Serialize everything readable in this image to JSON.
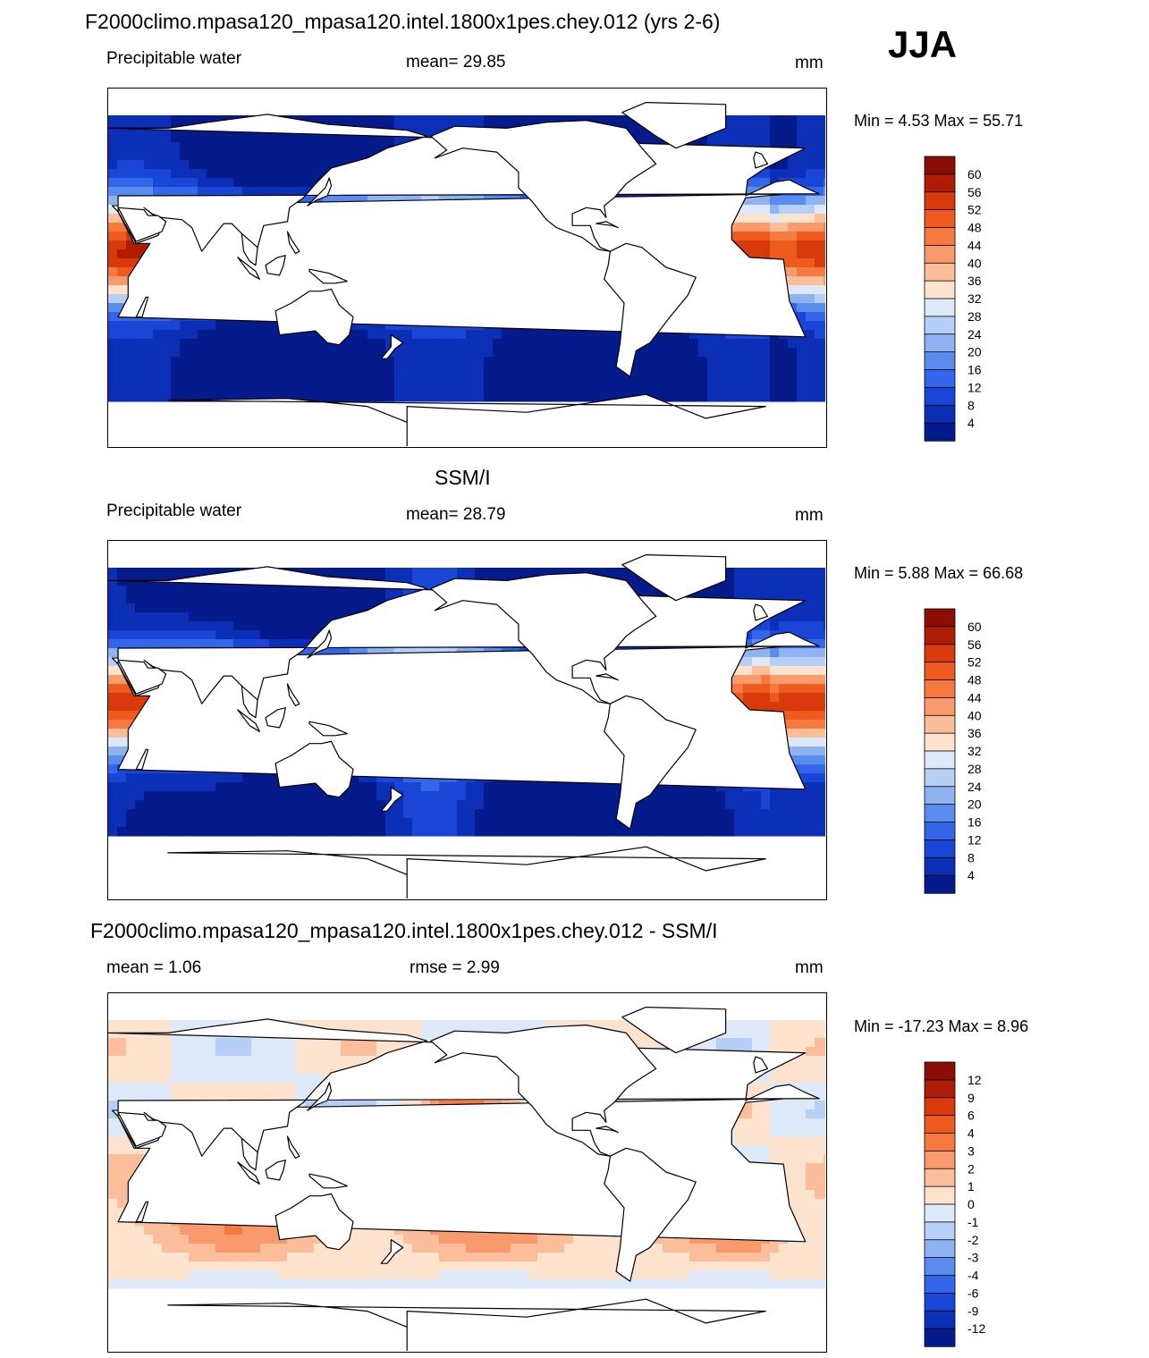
{
  "season": "JJA",
  "panels": [
    {
      "title": "F2000climo.mpasa120_mpasa120.intel.1800x1pes.chey.012 (yrs 2-6)",
      "left": "Precipitable water",
      "center": "mean=  29.85",
      "units": "mm",
      "minmax": "Min =    4.53 Max =  55.71",
      "colorbar": {
        "labels": [
          "60",
          "56",
          "52",
          "48",
          "44",
          "40",
          "36",
          "32",
          "28",
          "24",
          "20",
          "16",
          "12",
          "8",
          "4"
        ],
        "colors": [
          "#8b0d05",
          "#b01d06",
          "#d93a0c",
          "#ef5a1e",
          "#f67940",
          "#f99a6c",
          "#fbbd9a",
          "#fde2cd",
          "#dde9f9",
          "#b6cff7",
          "#8eb2f2",
          "#5a8bee",
          "#3366e8",
          "#1a46d8",
          "#0c2fb8",
          "#051b8c"
        ]
      },
      "variant": "model"
    },
    {
      "title": "SSM/I",
      "left": "Precipitable water",
      "center": "mean=  28.79",
      "units": "mm",
      "minmax": "Min =    5.88 Max =  66.68",
      "colorbar": {
        "labels": [
          "60",
          "56",
          "52",
          "48",
          "44",
          "40",
          "36",
          "32",
          "28",
          "24",
          "20",
          "16",
          "12",
          "8",
          "4"
        ],
        "colors": [
          "#8b0d05",
          "#b01d06",
          "#d93a0c",
          "#ef5a1e",
          "#f67940",
          "#f99a6c",
          "#fbbd9a",
          "#fde2cd",
          "#dde9f9",
          "#b6cff7",
          "#8eb2f2",
          "#5a8bee",
          "#3366e8",
          "#1a46d8",
          "#0c2fb8",
          "#051b8c"
        ]
      },
      "variant": "obs"
    },
    {
      "title": "F2000climo.mpasa120_mpasa120.intel.1800x1pes.chey.012 - SSM/I",
      "left": "mean =    1.06",
      "center": "rmse =    2.99",
      "units": "mm",
      "minmax": "Min = -17.23 Max =    8.96",
      "colorbar": {
        "labels": [
          "12",
          "9",
          "6",
          "4",
          "3",
          "2",
          "1",
          "0",
          "-1",
          "-2",
          "-3",
          "-4",
          "-6",
          "-9",
          "-12"
        ],
        "colors": [
          "#8b0d05",
          "#b01d06",
          "#d93a0c",
          "#ef5a1e",
          "#f67940",
          "#f99a6c",
          "#fbbd9a",
          "#fde2cd",
          "#dde9f9",
          "#b6cff7",
          "#8eb2f2",
          "#5a8bee",
          "#3366e8",
          "#1a46d8",
          "#0c2fb8",
          "#051b8c"
        ]
      },
      "variant": "diff"
    }
  ]
}
